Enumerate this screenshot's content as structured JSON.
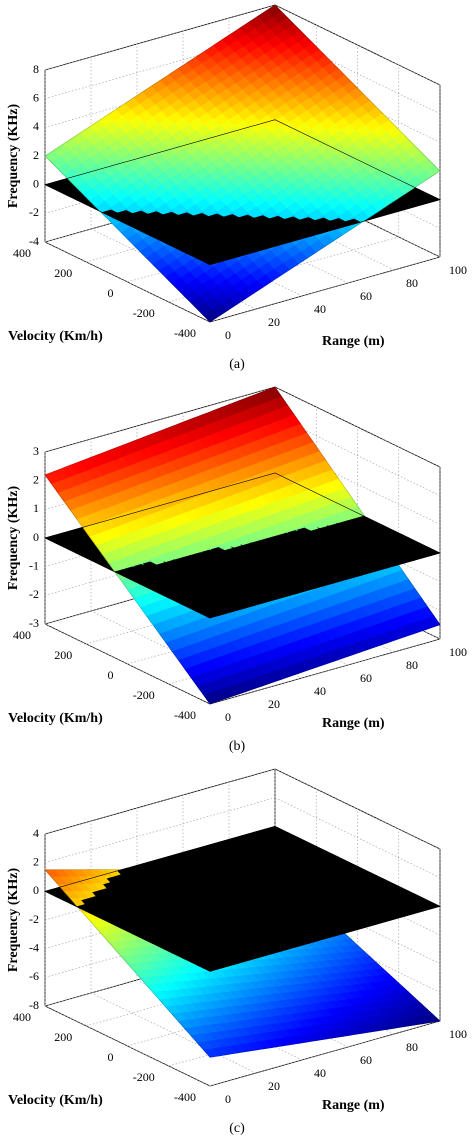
{
  "chart_data": [
    {
      "type": "surface",
      "caption": "(a)",
      "xlabel": "Range (m)",
      "ylabel": "Velocity (Km/h)",
      "zlabel": "Frequency (KHz)",
      "xlim": [
        0,
        100
      ],
      "ylim": [
        -400,
        400
      ],
      "zlim": [
        -4,
        8
      ],
      "xticks": [
        0,
        20,
        40,
        60,
        80,
        100
      ],
      "yticks": [
        -400,
        -200,
        0,
        200,
        400
      ],
      "zticks": [
        -4,
        -2,
        0,
        2,
        4,
        6,
        8
      ],
      "surface": {
        "x": [
          0,
          100
        ],
        "y": [
          -400,
          400
        ],
        "z": [
          [
            -4,
            2
          ],
          [
            2,
            8
          ]
        ],
        "colormap": "jet"
      },
      "plane": {
        "z": 0,
        "color": "#000000"
      },
      "grid": true
    },
    {
      "type": "surface",
      "caption": "(b)",
      "xlabel": "Range (m)",
      "ylabel": "Velocity (Km/h)",
      "zlabel": "Frequency (KHz)",
      "xlim": [
        0,
        100
      ],
      "ylim": [
        -400,
        400
      ],
      "zlim": [
        -3,
        3
      ],
      "xticks": [
        0,
        20,
        40,
        60,
        80,
        100
      ],
      "yticks": [
        -400,
        -200,
        0,
        200,
        400
      ],
      "zticks": [
        -3,
        -2,
        -1,
        0,
        1,
        2,
        3
      ],
      "surface": {
        "x": [
          0,
          100
        ],
        "y": [
          -400,
          400
        ],
        "z": [
          [
            -3,
            2.2
          ],
          [
            -2.5,
            3
          ]
        ],
        "colormap": "jet"
      },
      "plane": {
        "z": 0,
        "color": "#000000"
      },
      "grid": true
    },
    {
      "type": "surface",
      "caption": "(c)",
      "xlabel": "Range (m)",
      "ylabel": "Velocity (Km/h)",
      "zlabel": "Frequency (KHz)",
      "xlim": [
        0,
        100
      ],
      "ylim": [
        -400,
        400
      ],
      "zlim": [
        -8,
        4
      ],
      "xticks": [
        0,
        20,
        40,
        60,
        80,
        100
      ],
      "yticks": [
        -400,
        -200,
        0,
        200,
        400
      ],
      "zticks": [
        -8,
        -6,
        -4,
        -2,
        0,
        2,
        4
      ],
      "surface": {
        "x": [
          0,
          100
        ],
        "y": [
          -400,
          400
        ],
        "z": [
          [
            -6,
            1.5
          ],
          [
            -8,
            -3
          ]
        ],
        "colormap": "jet"
      },
      "plane": {
        "z": 0,
        "color": "#000000"
      },
      "grid": true
    }
  ]
}
